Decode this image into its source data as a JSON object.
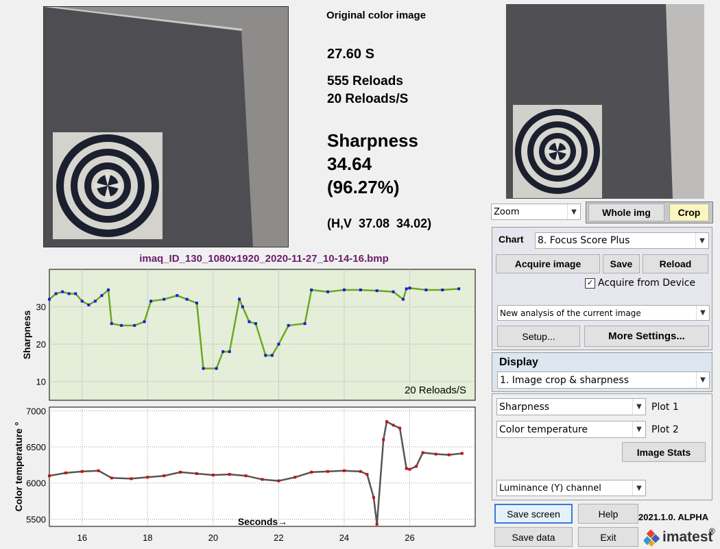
{
  "info": {
    "image_title": "Original color image",
    "elapsed": "27.60 S",
    "reloads": "555 Reloads",
    "reload_rate": "20 Reloads/S",
    "sharpness_label": "Sharpness",
    "sharpness_value": "34.64",
    "sharpness_pct": "(96.27%)",
    "hv": "(H,V  37.08  34.02)"
  },
  "filename": "imaq_ID_130_1080x1920_2020-11-27_10-14-16.bmp",
  "zoom": {
    "selected": "Zoom",
    "whole_label": "Whole img",
    "crop_label": "Crop"
  },
  "settings": {
    "chart_label": "Chart",
    "chart_selected": "8. Focus Score Plus",
    "acquire_label": "Acquire image",
    "save_label": "Save",
    "reload_label": "Reload",
    "acquire_device_label": "Acquire from Device",
    "acquire_device_checked": true,
    "analysis_selected": "New analysis of the current image",
    "setup_label": "Setup...",
    "more_label": "More Settings..."
  },
  "display": {
    "title": "Display",
    "mode_selected": "1. Image crop & sharpness",
    "plot1_selected": "Sharpness",
    "plot1_label": "Plot 1",
    "plot2_selected": "Color temperature",
    "plot2_label": "Plot 2",
    "stats_label": "Image Stats",
    "channel_selected": "Luminance (Y) channel"
  },
  "footer": {
    "save_screen": "Save screen",
    "help": "Help",
    "version": "2021.1.0. ALPHA",
    "save_data": "Save data",
    "exit": "Exit",
    "brand": "imatest",
    "reg": "®"
  },
  "colors": {
    "plot1_bg": "#e4eed8",
    "series1": "#1a1ad8",
    "series1_line": "#6aa820",
    "series2": "#cc1010",
    "series2_line": "#555555"
  },
  "chart_data": [
    {
      "type": "line",
      "ylabel": "Sharpness",
      "annotation": "20 Reloads/S",
      "xlim": [
        15,
        28
      ],
      "ylim": [
        5,
        40
      ],
      "yticks": [
        10,
        20,
        30
      ],
      "grid": true,
      "x": [
        15.0,
        15.2,
        15.4,
        15.6,
        15.8,
        16.0,
        16.2,
        16.4,
        16.6,
        16.8,
        16.9,
        17.2,
        17.6,
        17.9,
        18.1,
        18.5,
        18.9,
        19.2,
        19.5,
        19.7,
        20.1,
        20.3,
        20.5,
        20.8,
        20.9,
        21.1,
        21.3,
        21.6,
        21.8,
        22.0,
        22.3,
        22.8,
        23.0,
        23.5,
        24.0,
        24.5,
        25.0,
        25.5,
        25.8,
        25.9,
        26.0,
        26.5,
        27.0,
        27.5
      ],
      "y": [
        32.0,
        33.5,
        34.0,
        33.5,
        33.5,
        31.5,
        30.5,
        31.5,
        33.0,
        34.5,
        25.5,
        25.0,
        25.0,
        26.0,
        31.5,
        32.0,
        33.0,
        32.0,
        31.0,
        13.5,
        13.5,
        18.0,
        18.0,
        32.0,
        30.0,
        26.0,
        25.5,
        17.0,
        17.0,
        20.0,
        25.0,
        25.5,
        34.5,
        34.0,
        34.5,
        34.5,
        34.3,
        34.0,
        32.0,
        34.8,
        35.0,
        34.5,
        34.5,
        34.8
      ]
    },
    {
      "type": "line",
      "ylabel": "Color temperature °",
      "xlabel": "Seconds→",
      "xlim": [
        15,
        28
      ],
      "ylim": [
        5400,
        7050
      ],
      "xticks": [
        16,
        18,
        20,
        22,
        24,
        26
      ],
      "yticks": [
        5500,
        6000,
        6500,
        7000
      ],
      "grid": true,
      "x": [
        15.0,
        15.5,
        16.0,
        16.5,
        16.9,
        17.5,
        18.0,
        18.5,
        19.0,
        19.5,
        20.0,
        20.5,
        21.0,
        21.5,
        22.0,
        22.5,
        23.0,
        23.5,
        24.0,
        24.5,
        24.7,
        24.9,
        25.0,
        25.2,
        25.3,
        25.5,
        25.7,
        25.9,
        26.0,
        26.2,
        26.4,
        26.8,
        27.2,
        27.6
      ],
      "y": [
        6100,
        6140,
        6160,
        6170,
        6070,
        6060,
        6080,
        6100,
        6150,
        6130,
        6110,
        6120,
        6100,
        6050,
        6030,
        6080,
        6150,
        6160,
        6170,
        6160,
        6120,
        5800,
        5430,
        6600,
        6850,
        6800,
        6760,
        6200,
        6190,
        6230,
        6420,
        6400,
        6390,
        6410
      ]
    }
  ]
}
